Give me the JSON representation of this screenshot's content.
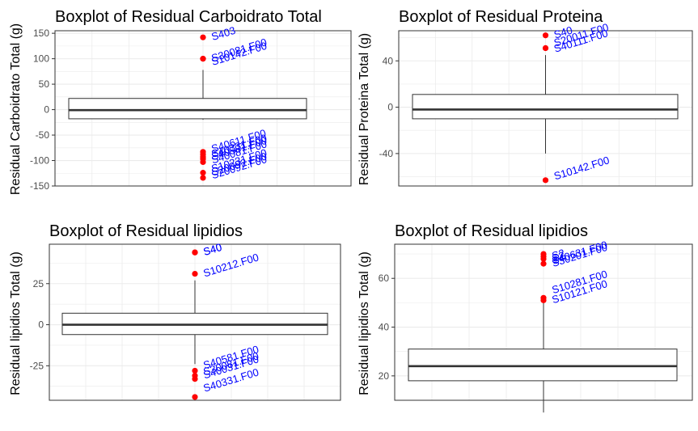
{
  "chart_data": [
    {
      "type": "box",
      "title": "Boxplot of Residual Carboidrato Total",
      "ylabel": "Residual Carboidrato Total (g)",
      "xlabel": "",
      "ylim": [
        -150,
        155
      ],
      "yticks": [
        -150,
        -100,
        -50,
        0,
        50,
        100,
        150
      ],
      "box": {
        "whisker_low": -20,
        "q1": -18,
        "median": -1,
        "q3": 22,
        "whisker_high": 78
      },
      "outliers": [
        {
          "label": "S403",
          "y": 142,
          "label_y": 142
        },
        {
          "label": "S30081.F00",
          "y": 100,
          "label_y": 100
        },
        {
          "label": "S10142.F00",
          "y": 100,
          "label_y": 93
        },
        {
          "label": "S40611.F00",
          "y": -83,
          "label_y": -78
        },
        {
          "label": "S40331.F00",
          "y": -88,
          "label_y": -88
        },
        {
          "label": "S40581.F00",
          "y": -93,
          "label_y": -93
        },
        {
          "label": "S40081.F00",
          "y": -97,
          "label_y": -100
        },
        {
          "label": "S10231.F00",
          "y": -103,
          "label_y": -117
        },
        {
          "label": "S20092.F00",
          "y": -124,
          "label_y": -124
        },
        {
          "label": "S20092.F00",
          "y": -134,
          "label_y": -130
        }
      ]
    },
    {
      "type": "box",
      "title": "Boxplot of Residual Proteina",
      "ylabel": "Residual Proteina Total (g)",
      "xlabel": "",
      "ylim": [
        -68,
        66
      ],
      "yticks": [
        -40,
        0,
        40
      ],
      "box": {
        "whisker_low": -40,
        "q1": -10,
        "median": -2,
        "q3": 11,
        "whisker_high": 45
      },
      "outliers": [
        {
          "label": "S40",
          "y": 62,
          "label_y": 62
        },
        {
          "label": "S40111.F00",
          "y": 51,
          "label_y": 50
        },
        {
          "label": "S20011.F00",
          "y": 51,
          "label_y": 55
        },
        {
          "label": "S10142.F00",
          "y": -63,
          "label_y": -60
        }
      ]
    },
    {
      "type": "box",
      "title": "Boxplot of Residual lipidios",
      "ylabel": "Residual lipidios Total (g)",
      "xlabel": "",
      "ylim": [
        -46,
        49
      ],
      "yticks": [
        -25,
        0,
        25
      ],
      "box": {
        "whisker_low": -24,
        "q1": -6,
        "median": 0,
        "q3": 7,
        "whisker_high": 27
      },
      "outliers": [
        {
          "label": "S40",
          "y": 44,
          "label_y": 44
        },
        {
          "label": "S40",
          "y": 44,
          "label_y": 44
        },
        {
          "label": "S10212.F00",
          "y": 31,
          "label_y": 31
        },
        {
          "label": "S40581.F00",
          "y": -28,
          "label_y": -25
        },
        {
          "label": "S30081.F00",
          "y": -31,
          "label_y": -29
        },
        {
          "label": "S40031.F00",
          "y": -33,
          "label_y": -31
        },
        {
          "label": "S40331.F00",
          "y": -44,
          "label_y": -39
        }
      ]
    },
    {
      "type": "box",
      "title": "Boxplot of Residual lipidios",
      "ylabel": "Residual lipidios Total (g)",
      "xlabel": "",
      "ylim": [
        10,
        74
      ],
      "yticks": [
        20,
        40,
        60
      ],
      "box": {
        "whisker_low": 5,
        "q1": 18,
        "median": 24,
        "q3": 31,
        "whisker_high": 50
      },
      "outliers": [
        {
          "label": "S40631.F00",
          "y": 70,
          "label_y": 67
        },
        {
          "label": "S2",
          "y": 69,
          "label_y": 69
        },
        {
          "label": "S2",
          "y": 68,
          "label_y": 68
        },
        {
          "label": "S30201.F00",
          "y": 66,
          "label_y": 66
        },
        {
          "label": "S10281.F00",
          "y": 52,
          "label_y": 55
        },
        {
          "label": "S10121.F00",
          "y": 51,
          "label_y": 51
        }
      ]
    }
  ],
  "colors": {
    "outlier": "#ff0000",
    "label": "#0000ff",
    "grid": "#ebebeb",
    "axis_text": "#4d4d4d",
    "box_line": "#333333"
  }
}
